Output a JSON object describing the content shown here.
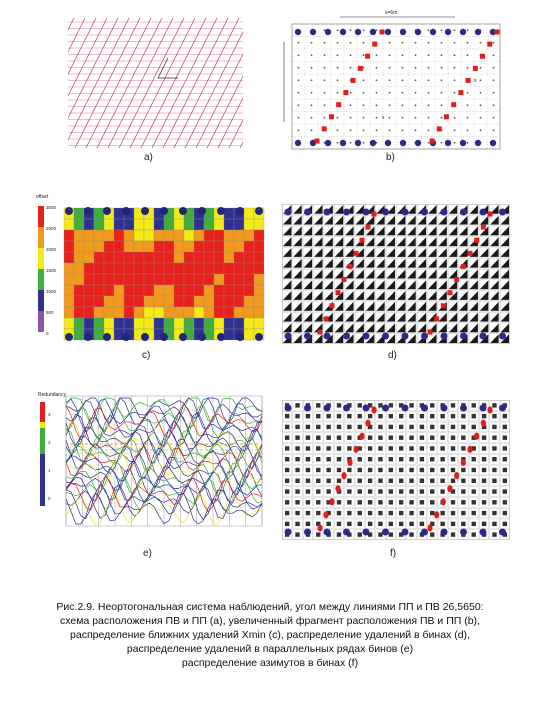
{
  "panels": {
    "a": {
      "label": "a)",
      "axis_label": ""
    },
    "b": {
      "label": "b)",
      "top_dim": "x=6m",
      "left_dim": "y=50m",
      "mark_1": "x",
      "mark_2": "x"
    },
    "c": {
      "label": "c)",
      "legend_title": "offset",
      "legend_values": [
        "3000",
        "2500",
        "2000",
        "1500",
        "1000",
        "500",
        "0"
      ],
      "colors": {
        "red": "#e8211c",
        "orange": "#f29a1d",
        "yellow": "#f3ea16",
        "green": "#3fae3c",
        "blue": "#2e3192",
        "purple": "#8a57a6",
        "shot": "#24247a"
      }
    },
    "d": {
      "label": "d)"
    },
    "e": {
      "label": "e)",
      "legend_title": "Redundancy",
      "legend_values": [
        "3",
        "2",
        "1",
        "0"
      ]
    },
    "f": {
      "label": "f)"
    }
  },
  "caption": {
    "line1": "Рис.2.9. Неортогональная система наблюдений, угол между линиями ПП и ПВ 26,5650:",
    "line2": "схема расположения ПВ и ПП (a), увеличенный фрагмент расположения ПВ и ПП (b),",
    "line3": "распределение ближних удалений Xmin (c), распределение удалений в бинах (d),",
    "line4": "распределение удалений в параллельных рядах бинов (e)",
    "line5": "распределение азимутов в бинах (f)"
  }
}
